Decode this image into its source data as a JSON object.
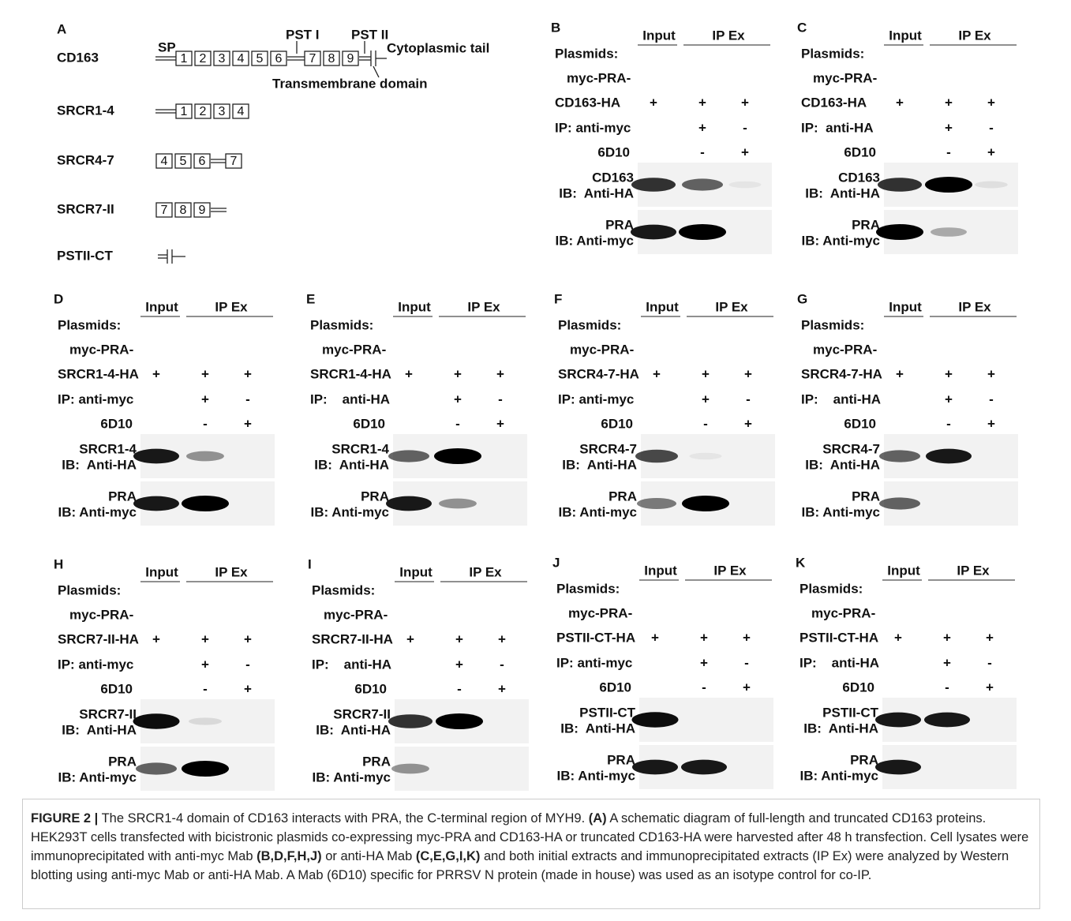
{
  "panel_a": {
    "label": "A",
    "rows": [
      {
        "name": "CD163",
        "boxes": [
          "1",
          "2",
          "3",
          "4",
          "5",
          "6",
          "7",
          "8",
          "9"
        ]
      },
      {
        "name": "SRCR1-4",
        "boxes": [
          "1",
          "2",
          "3",
          "4"
        ]
      },
      {
        "name": "SRCR4-7",
        "boxes": [
          "4",
          "5",
          "6",
          "7"
        ]
      },
      {
        "name": "SRCR7-II",
        "boxes": [
          "7",
          "8",
          "9"
        ]
      },
      {
        "name": "PSTII-CT",
        "boxes": []
      }
    ],
    "annotations": [
      "SP",
      "PST I",
      "PST II",
      "Cytoplasmic tail",
      "Transmembrane domain"
    ]
  },
  "panels": [
    {
      "label": "B",
      "input": "Input",
      "ipex": "IP Ex",
      "plasmids": "Plasmids:",
      "myc": "myc-PRA-",
      "construct": "CD163-HA",
      "construct_signs": [
        "+",
        "+",
        "+"
      ],
      "ip": "IP: anti-myc",
      "ip_signs": [
        "+",
        "-"
      ],
      "control": "6D10",
      "control_signs": [
        "-",
        "+"
      ],
      "blot1": [
        "CD163",
        "IB:  Anti-HA"
      ],
      "blot2": [
        "PRA",
        "IB: Anti-myc"
      ]
    },
    {
      "label": "C",
      "input": "Input",
      "ipex": "IP Ex",
      "plasmids": "Plasmids:",
      "myc": "myc-PRA-",
      "construct": "CD163-HA",
      "construct_signs": [
        "+",
        "+",
        "+"
      ],
      "ip": "IP:  anti-HA",
      "ip_signs": [
        "+",
        "-"
      ],
      "control": "6D10",
      "control_signs": [
        "-",
        "+"
      ],
      "blot1": [
        "CD163",
        "IB:  Anti-HA"
      ],
      "blot2": [
        "PRA",
        "IB: Anti-myc"
      ]
    },
    {
      "label": "D",
      "input": "Input",
      "ipex": "IP Ex",
      "plasmids": "Plasmids:",
      "myc": "myc-PRA-",
      "construct": "SRCR1-4-HA",
      "construct_signs": [
        "+",
        "+",
        "+"
      ],
      "ip": "IP: anti-myc",
      "ip_signs": [
        "+",
        "-"
      ],
      "control": "6D10",
      "control_signs": [
        "-",
        "+"
      ],
      "blot1": [
        "SRCR1-4",
        "IB:  Anti-HA"
      ],
      "blot2": [
        "PRA",
        "IB: Anti-myc"
      ]
    },
    {
      "label": "E",
      "input": "Input",
      "ipex": "IP Ex",
      "plasmids": "Plasmids:",
      "myc": "myc-PRA-",
      "construct": "SRCR1-4-HA",
      "construct_signs": [
        "+",
        "+",
        "+"
      ],
      "ip": "IP:    anti-HA",
      "ip_signs": [
        "+",
        "-"
      ],
      "control": "6D10",
      "control_signs": [
        "-",
        "+"
      ],
      "blot1": [
        "SRCR1-4",
        "IB:  Anti-HA"
      ],
      "blot2": [
        "PRA",
        "IB: Anti-myc"
      ]
    },
    {
      "label": "F",
      "input": "Input",
      "ipex": "IP Ex",
      "plasmids": "Plasmids:",
      "myc": "myc-PRA-",
      "construct": "SRCR4-7-HA",
      "construct_signs": [
        "+",
        "+",
        "+"
      ],
      "ip": "IP: anti-myc",
      "ip_signs": [
        "+",
        "-"
      ],
      "control": "6D10",
      "control_signs": [
        "-",
        "+"
      ],
      "blot1": [
        "SRCR4-7",
        "IB:  Anti-HA"
      ],
      "blot2": [
        "PRA",
        "IB: Anti-myc"
      ]
    },
    {
      "label": "G",
      "input": "Input",
      "ipex": "IP Ex",
      "plasmids": "Plasmids:",
      "myc": "myc-PRA-",
      "construct": "SRCR4-7-HA",
      "construct_signs": [
        "+",
        "+",
        "+"
      ],
      "ip": "IP:    anti-HA",
      "ip_signs": [
        "+",
        "-"
      ],
      "control": "6D10",
      "control_signs": [
        "-",
        "+"
      ],
      "blot1": [
        "SRCR4-7",
        "IB:  Anti-HA"
      ],
      "blot2": [
        "PRA",
        "IB: Anti-myc"
      ]
    },
    {
      "label": "H",
      "input": "Input",
      "ipex": "IP Ex",
      "plasmids": "Plasmids:",
      "myc": "myc-PRA-",
      "construct": "SRCR7-II-HA",
      "construct_signs": [
        "+",
        "+",
        "+"
      ],
      "ip": "IP: anti-myc",
      "ip_signs": [
        "+",
        "-"
      ],
      "control": "6D10",
      "control_signs": [
        "-",
        "+"
      ],
      "blot1": [
        "SRCR7-II",
        "IB:  Anti-HA"
      ],
      "blot2": [
        "PRA",
        "IB: Anti-myc"
      ]
    },
    {
      "label": "I",
      "input": "Input",
      "ipex": "IP Ex",
      "plasmids": "Plasmids:",
      "myc": "myc-PRA-",
      "construct": "SRCR7-II-HA",
      "construct_signs": [
        "+",
        "+",
        "+"
      ],
      "ip": "IP:    anti-HA",
      "ip_signs": [
        "+",
        "-"
      ],
      "control": "6D10",
      "control_signs": [
        "-",
        "+"
      ],
      "blot1": [
        "SRCR7-II",
        "IB:  Anti-HA"
      ],
      "blot2": [
        "PRA",
        "IB: Anti-myc"
      ]
    },
    {
      "label": "J",
      "input": "Input",
      "ipex": "IP Ex",
      "plasmids": "Plasmids:",
      "myc": "myc-PRA-",
      "construct": "PSTII-CT-HA",
      "construct_signs": [
        "+",
        "+",
        "+"
      ],
      "ip": "IP: anti-myc",
      "ip_signs": [
        "+",
        "-"
      ],
      "control": "6D10",
      "control_signs": [
        "-",
        "+"
      ],
      "blot1": [
        "PSTII-CT",
        "IB:  Anti-HA"
      ],
      "blot2": [
        "PRA",
        "IB: Anti-myc"
      ]
    },
    {
      "label": "K",
      "input": "Input",
      "ipex": "IP Ex",
      "plasmids": "Plasmids:",
      "myc": "myc-PRA-",
      "construct": "PSTII-CT-HA",
      "construct_signs": [
        "+",
        "+",
        "+"
      ],
      "ip": "IP:    anti-HA",
      "ip_signs": [
        "+",
        "-"
      ],
      "control": "6D10",
      "control_signs": [
        "-",
        "+"
      ],
      "blot1": [
        "PSTII-CT",
        "IB:  Anti-HA"
      ],
      "blot2": [
        "PRA",
        "IB: Anti-myc"
      ]
    }
  ],
  "caption": [
    {
      "text": "FIGURE 2 |",
      "bold": true
    },
    {
      "text": " The SRCR1-4 domain of CD163 interacts with PRA, the C-terminal region of MYH9. ",
      "bold": false
    },
    {
      "text": "(A)",
      "bold": true
    },
    {
      "text": " A schematic diagram of full-length and truncated CD163 proteins. HEK293T cells transfected with bicistronic plasmids co-expressing myc-PRA and CD163-HA or truncated CD163-HA were harvested after 48 h transfection. Cell lysates were immunoprecipitated with anti-myc Mab ",
      "bold": false
    },
    {
      "text": "(B,D,F,H,J)",
      "bold": true
    },
    {
      "text": " or anti-HA Mab ",
      "bold": false
    },
    {
      "text": "(C,E,G,I,K)",
      "bold": true
    },
    {
      "text": " and both initial extracts and immunoprecipitated extracts (IP Ex) were analyzed by Western blotting using anti-myc Mab or anti-HA Mab. A Mab (6D10) specific for PRRSV N protein (made in house) was used as an isotype control for co-IP.",
      "bold": false
    }
  ]
}
